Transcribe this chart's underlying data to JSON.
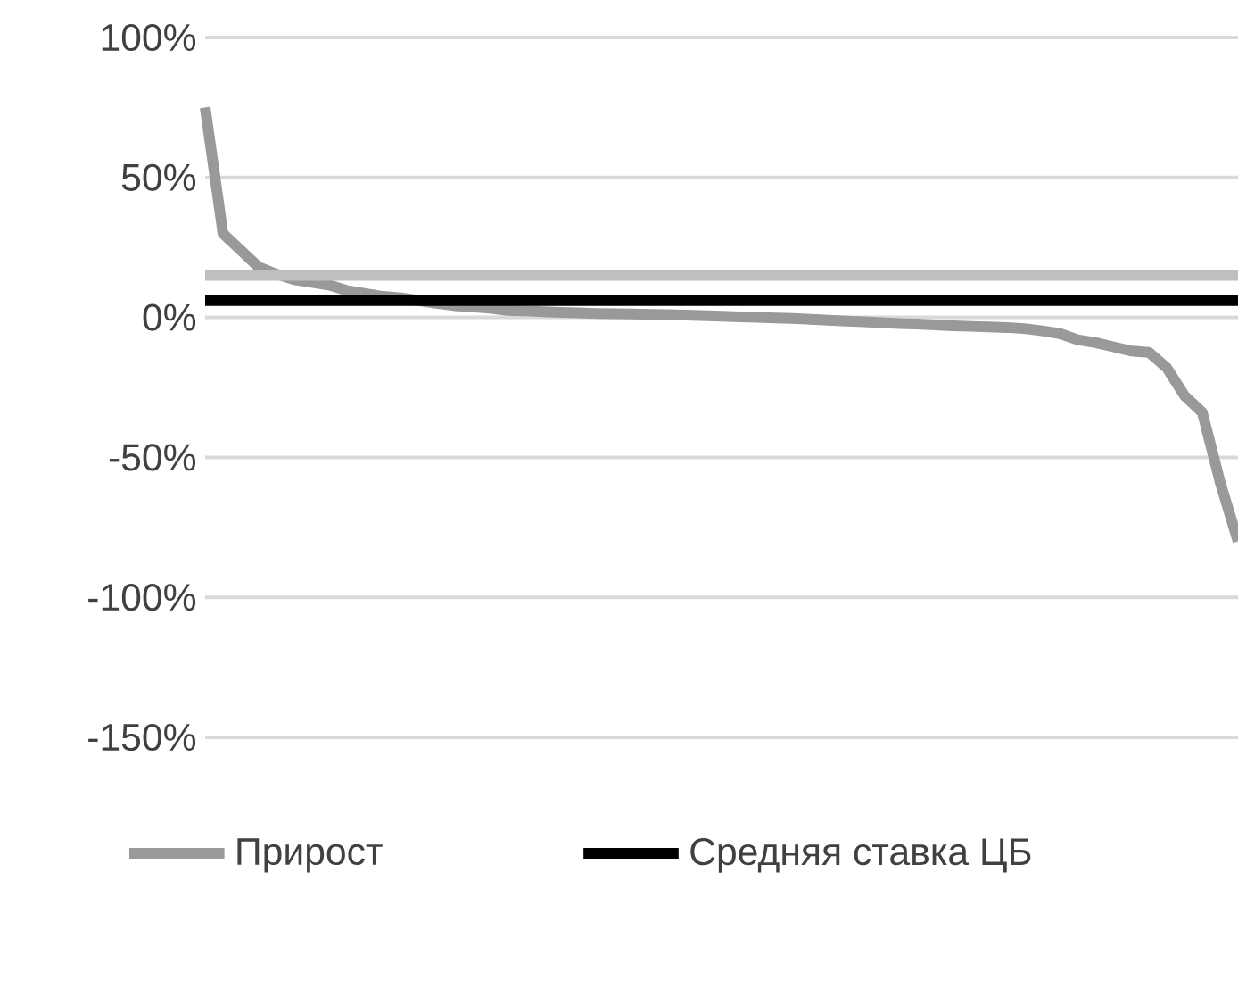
{
  "chart_data": {
    "type": "line",
    "categories": [
      null,
      null,
      null,
      null,
      null,
      null,
      null,
      null,
      null,
      null,
      null,
      null,
      null,
      null,
      null,
      null,
      null,
      null,
      null,
      null,
      null,
      null,
      null,
      null,
      null,
      null,
      null,
      null,
      null,
      null,
      null,
      null,
      null,
      null,
      null,
      null,
      null,
      null,
      null,
      null,
      null,
      null,
      null,
      null,
      null,
      null,
      null,
      null,
      null,
      null,
      null,
      null,
      null,
      null,
      null,
      null,
      null,
      null,
      null
    ],
    "series": [
      {
        "name": "Прирост",
        "color": "#999999",
        "values": [
          75,
          30,
          24,
          18,
          15.5,
          13.5,
          12.5,
          11.5,
          9.5,
          8.5,
          7.5,
          7,
          6,
          5,
          4.2,
          3.8,
          3.3,
          2.5,
          2.3,
          2.0,
          1.8,
          1.6,
          1.4,
          1.3,
          1.2,
          1.1,
          1.0,
          0.8,
          0.6,
          0.4,
          0.2,
          0,
          -0.2,
          -0.4,
          -0.7,
          -1.0,
          -1.3,
          -1.6,
          -1.9,
          -2.2,
          -2.4,
          -2.7,
          -3,
          -3.2,
          -3.4,
          -3.6,
          -4,
          -4.8,
          -5.8,
          -8,
          -9,
          -10.5,
          -12,
          -12.5,
          -18,
          -28,
          -34,
          -59,
          -80
        ]
      },
      {
        "name": "Средняя ставка ЦБ",
        "color": "#000000",
        "values": [
          6,
          6,
          6,
          6,
          6,
          6,
          6,
          6,
          6,
          6,
          6,
          6,
          6,
          6,
          6,
          6,
          6,
          6,
          6,
          6,
          6,
          6,
          6,
          6,
          6,
          6,
          6,
          6,
          6,
          6,
          6,
          6,
          6,
          6,
          6,
          6,
          6,
          6,
          6,
          6,
          6,
          6,
          6,
          6,
          6,
          6,
          6,
          6,
          6,
          6,
          6,
          6,
          6,
          6,
          6,
          6,
          6,
          6,
          6
        ]
      },
      {
        "color": "#bfbfbf",
        "values": [
          15,
          15,
          15,
          15,
          15,
          15,
          15,
          15,
          15,
          15,
          15,
          15,
          15,
          15,
          15,
          15,
          15,
          15,
          15,
          15,
          15,
          15,
          15,
          15,
          15,
          15,
          15,
          15,
          15,
          15,
          15,
          15,
          15,
          15,
          15,
          15,
          15,
          15,
          15,
          15,
          15,
          15,
          15,
          15,
          15,
          15,
          15,
          15,
          15,
          15,
          15,
          15,
          15,
          15,
          15,
          15,
          15,
          15,
          15
        ]
      }
    ],
    "ylim": [
      -150,
      100
    ],
    "yticks": [
      {
        "value": -150,
        "label": "-150%"
      },
      {
        "value": -100,
        "label": "-100%"
      },
      {
        "value": -50,
        "label": "-50%"
      },
      {
        "value": 0,
        "label": "0%"
      },
      {
        "value": 50,
        "label": "50%"
      },
      {
        "value": 100,
        "label": "100%"
      }
    ],
    "grid": "y",
    "legend": "bottom",
    "tick_labels": "y"
  }
}
